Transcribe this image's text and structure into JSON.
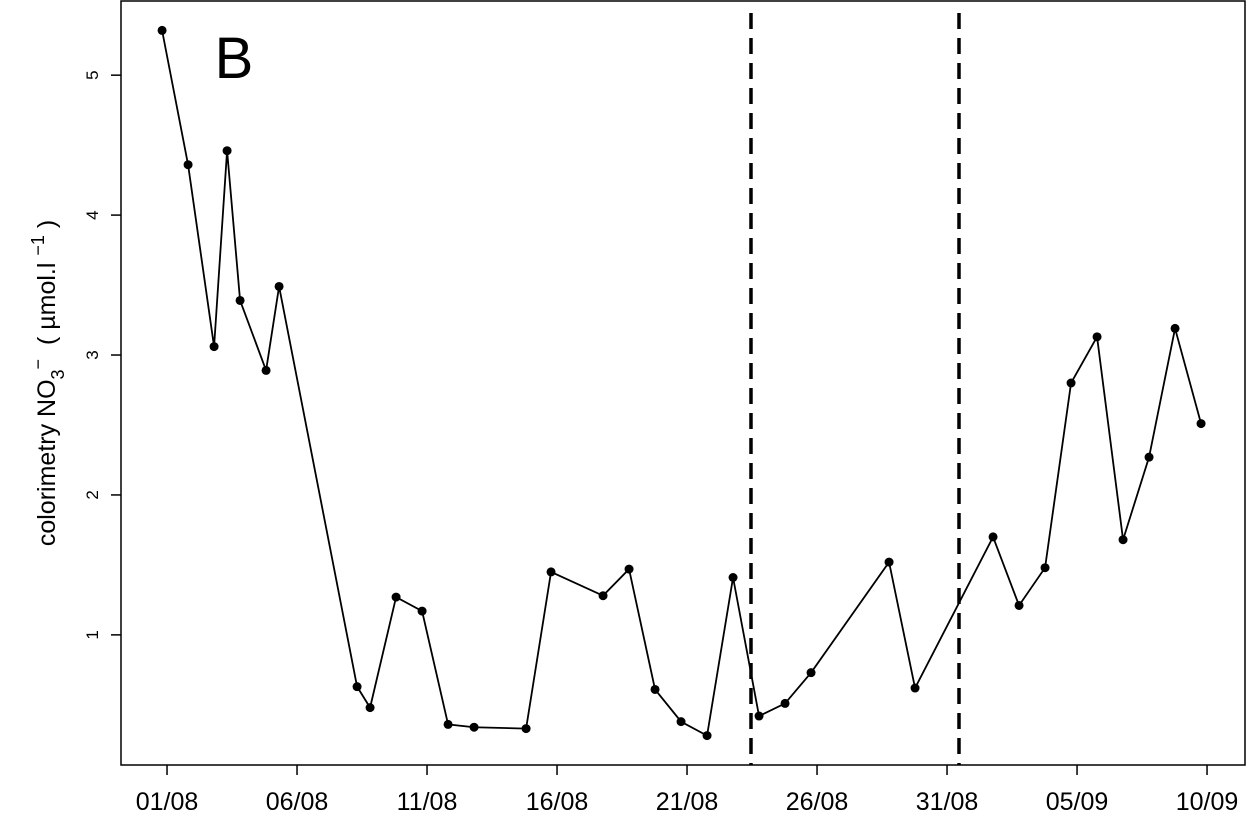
{
  "chart_data": {
    "type": "line",
    "annotation": "B",
    "ylabel_parts": [
      {
        "text": "colorimetry NO"
      },
      {
        "text": "3",
        "shift": "sub"
      },
      {
        "text": "−",
        "shift": "sup"
      },
      {
        "text": "  ( µmol.l "
      },
      {
        "text": "−1",
        "shift": "sup"
      },
      {
        "text": " )"
      }
    ],
    "x": [
      -0.19,
      0.81,
      1.81,
      2.31,
      2.81,
      3.81,
      4.31,
      7.31,
      7.81,
      8.81,
      9.81,
      10.81,
      11.81,
      13.81,
      14.77,
      16.77,
      17.77,
      18.77,
      19.77,
      20.77,
      21.77,
      22.77,
      23.77,
      24.77,
      27.77,
      28.77,
      31.77,
      32.77,
      33.77,
      34.77,
      35.77,
      36.77,
      37.77,
      38.77,
      39.77
    ],
    "series": [
      {
        "color": "#000000",
        "values": [
          5.32,
          4.36,
          3.06,
          4.46,
          3.39,
          2.89,
          3.49,
          0.63,
          0.48,
          1.27,
          1.17,
          0.36,
          0.34,
          0.33,
          1.45,
          1.28,
          1.47,
          0.61,
          0.38,
          0.28,
          1.41,
          0.42,
          0.51,
          0.73,
          1.52,
          0.62,
          1.7,
          1.21,
          1.48,
          2.8,
          3.13,
          1.68,
          2.27,
          3.19,
          2.51
        ]
      }
    ],
    "vlines": [
      22.46,
      30.46
    ],
    "xlim": [
      -1.77,
      41.46
    ],
    "ylim": [
      0.07,
      5.53
    ],
    "xticks": [
      {
        "value": 0,
        "label": "01/08"
      },
      {
        "value": 5,
        "label": "06/08"
      },
      {
        "value": 10,
        "label": "11/08"
      },
      {
        "value": 15,
        "label": "16/08"
      },
      {
        "value": 20,
        "label": "21/08"
      },
      {
        "value": 25,
        "label": "26/08"
      },
      {
        "value": 30,
        "label": "31/08"
      },
      {
        "value": 35,
        "label": "05/09"
      },
      {
        "value": 40,
        "label": "10/09"
      }
    ],
    "yticks": [
      1,
      2,
      3,
      4,
      5
    ],
    "grid": false
  }
}
